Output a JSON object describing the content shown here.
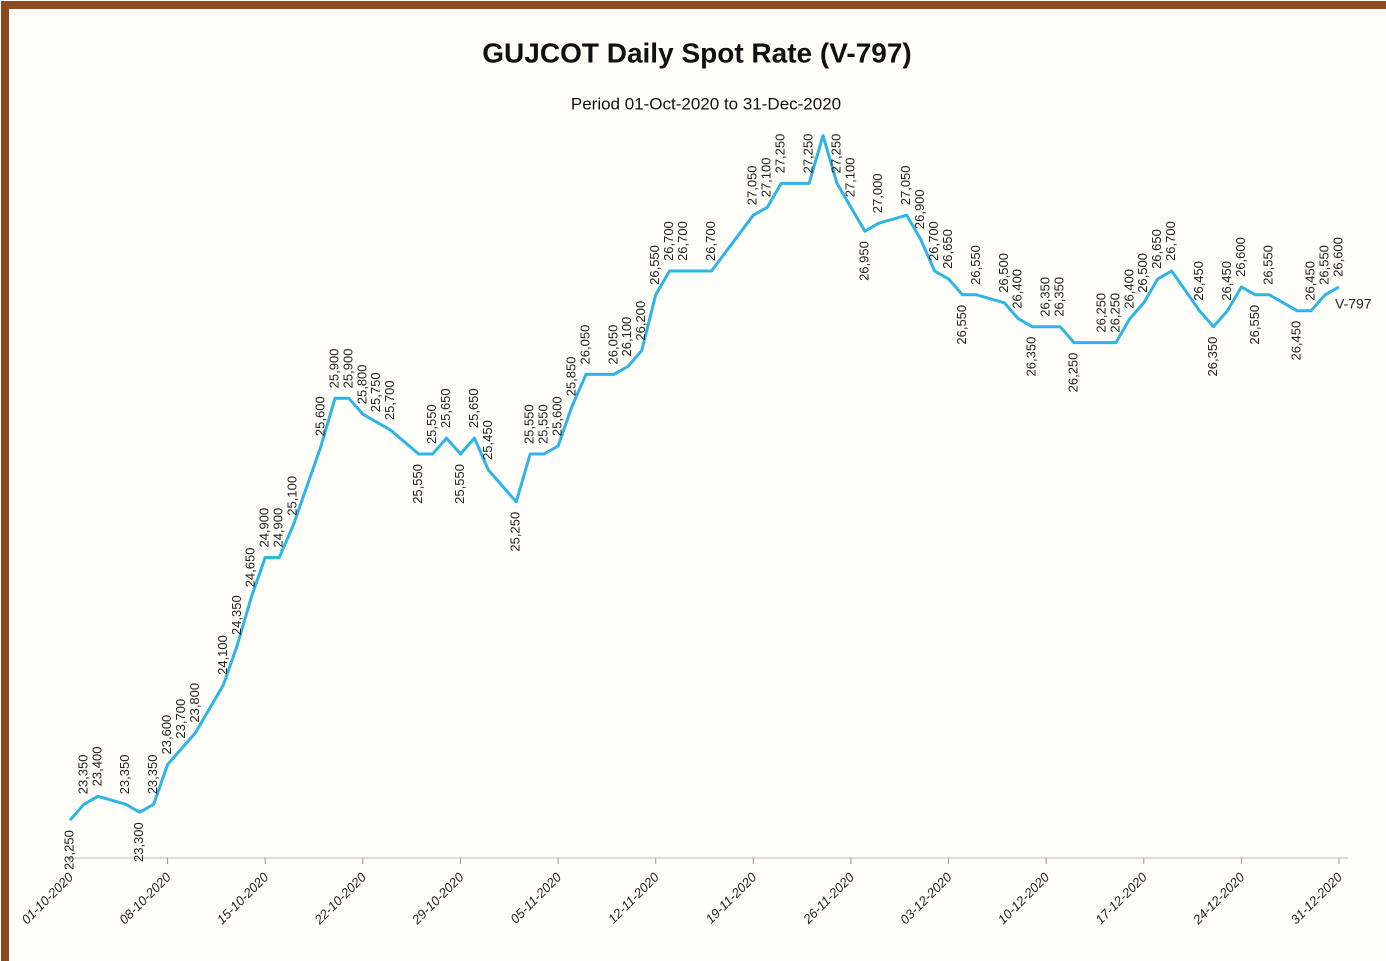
{
  "chart_data": {
    "type": "line",
    "title": "GUJCOT Daily Spot Rate (V-797)",
    "subtitle": "Period 01-Oct-2020  to 31-Dec-2020",
    "x": [
      "01-10-2020",
      "02-10-2020",
      "03-10-2020",
      "05-10-2020",
      "06-10-2020",
      "07-10-2020",
      "08-10-2020",
      "09-10-2020",
      "10-10-2020",
      "12-10-2020",
      "13-10-2020",
      "14-10-2020",
      "15-10-2020",
      "16-10-2020",
      "17-10-2020",
      "19-10-2020",
      "20-10-2020",
      "21-10-2020",
      "22-10-2020",
      "23-10-2020",
      "24-10-2020",
      "26-10-2020",
      "27-10-2020",
      "28-10-2020",
      "29-10-2020",
      "30-10-2020",
      "31-10-2020",
      "02-11-2020",
      "03-11-2020",
      "04-11-2020",
      "05-11-2020",
      "06-11-2020",
      "07-11-2020",
      "09-11-2020",
      "10-11-2020",
      "11-11-2020",
      "12-11-2020",
      "13-11-2020",
      "14-11-2020",
      "16-11-2020",
      "19-11-2020",
      "20-11-2020",
      "21-11-2020",
      "23-11-2020",
      "24-11-2020",
      "25-11-2020",
      "26-11-2020",
      "27-11-2020",
      "28-11-2020",
      "30-11-2020",
      "01-12-2020",
      "02-12-2020",
      "03-12-2020",
      "04-12-2020",
      "05-12-2020",
      "07-12-2020",
      "08-12-2020",
      "09-12-2020",
      "10-12-2020",
      "11-12-2020",
      "12-12-2020",
      "14-12-2020",
      "15-12-2020",
      "16-12-2020",
      "17-12-2020",
      "18-12-2020",
      "19-12-2020",
      "21-12-2020",
      "22-12-2020",
      "23-12-2020",
      "24-12-2020",
      "25-12-2020",
      "26-12-2020",
      "28-12-2020",
      "29-12-2020",
      "30-12-2020",
      "31-12-2020"
    ],
    "series": [
      {
        "name": "V-797",
        "color": "#2eb4e6",
        "values": [
          23250,
          23350,
          23400,
          23350,
          23300,
          23350,
          23600,
          23700,
          23800,
          24100,
          24350,
          24650,
          24900,
          24900,
          25100,
          25600,
          25900,
          25900,
          25800,
          25750,
          25700,
          25550,
          25550,
          25650,
          25550,
          25650,
          25450,
          25250,
          25550,
          25550,
          25600,
          25850,
          26050,
          26050,
          26100,
          26200,
          26550,
          26700,
          26700,
          26700,
          27050,
          27100,
          27250,
          27250,
          27550,
          27250,
          27100,
          26950,
          27000,
          27050,
          26900,
          26700,
          26650,
          26550,
          26550,
          26500,
          26400,
          26350,
          26350,
          26350,
          26250,
          26250,
          26250,
          26400,
          26500,
          26650,
          26700,
          26450,
          26350,
          26450,
          26600,
          26550,
          26550,
          26450,
          26450,
          26550,
          26600
        ],
        "value_labels": [
          "23,250",
          "23,350",
          "23,400",
          "23,350",
          "23,300",
          "23,350",
          "23,600",
          "23,700",
          "23,800",
          "24,100",
          "24,350",
          "24,650",
          "24,900",
          "24,900",
          "25,100",
          "25,600",
          "25,900",
          "25,900",
          "25,800",
          "25,750",
          "25,700",
          "25,550",
          "25,550",
          "25,650",
          "25,550",
          "25,650",
          "25,450",
          "25,250",
          "25,550",
          "25,550",
          "25,600",
          "25,850",
          "26,050",
          "26,050",
          "26,100",
          "26,200",
          "26,550",
          "26,700",
          "26,700",
          "26,700",
          "27,050",
          "27,100",
          "27,250",
          "27,250",
          null,
          "27,250",
          "27,100",
          "26,950",
          "27,000",
          "27,050",
          "26,900",
          "26,700",
          "26,650",
          "26,550",
          "26,550",
          "26,500",
          "26,400",
          "26,350",
          "26,350",
          "26,350",
          "26,250",
          "26,250",
          "26,250",
          "26,400",
          "26,500",
          "26,650",
          "26,700",
          "26,450",
          "26,350",
          "26,450",
          "26,600",
          "26,550",
          "26,550",
          "26,450",
          "26,450",
          "26,550",
          "26,600"
        ]
      }
    ],
    "xlim": [
      "01-10-2020",
      "31-12-2020"
    ],
    "xticks": [
      "01-10-2020",
      "08-10-2020",
      "15-10-2020",
      "22-10-2020",
      "29-10-2020",
      "05-11-2020",
      "12-11-2020",
      "19-11-2020",
      "26-11-2020",
      "03-12-2020",
      "10-12-2020",
      "17-12-2020",
      "24-12-2020",
      "31-12-2020"
    ],
    "ylim": [
      23000,
      28000
    ]
  }
}
